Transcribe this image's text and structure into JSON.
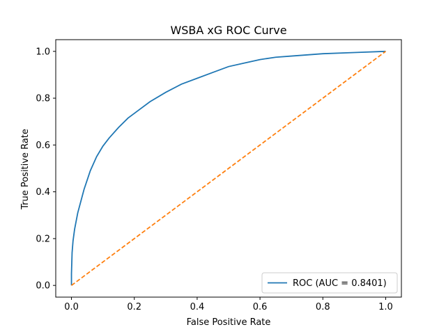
{
  "chart_data": {
    "type": "line",
    "title": "WSBA xG ROC Curve",
    "xlabel": "False Positive Rate",
    "ylabel": "True Positive Rate",
    "xlim": [
      -0.05,
      1.05
    ],
    "ylim": [
      -0.05,
      1.05
    ],
    "x_ticks": [
      "0.0",
      "0.2",
      "0.4",
      "0.6",
      "0.8",
      "1.0"
    ],
    "y_ticks": [
      "0.0",
      "0.2",
      "0.4",
      "0.6",
      "0.8",
      "1.0"
    ],
    "grid": false,
    "legend_position": "lower-right",
    "series": [
      {
        "name": "ROC (AUC = 0.8401)",
        "color": "#1f77b4",
        "style": "solid",
        "x": [
          0,
          0.0,
          0.002,
          0.005,
          0.01,
          0.02,
          0.03,
          0.04,
          0.05,
          0.06,
          0.08,
          0.1,
          0.12,
          0.15,
          0.18,
          0.2,
          0.25,
          0.3,
          0.35,
          0.4,
          0.45,
          0.5,
          0.55,
          0.6,
          0.65,
          0.7,
          0.8,
          0.9,
          1.0
        ],
        "y": [
          0,
          0.05,
          0.14,
          0.19,
          0.24,
          0.31,
          0.36,
          0.41,
          0.45,
          0.49,
          0.55,
          0.595,
          0.63,
          0.675,
          0.715,
          0.735,
          0.785,
          0.825,
          0.86,
          0.885,
          0.91,
          0.935,
          0.95,
          0.965,
          0.975,
          0.98,
          0.99,
          0.995,
          1.0
        ]
      },
      {
        "name": "",
        "color": "#ff7f0e",
        "style": "dashed",
        "x": [
          0,
          1
        ],
        "y": [
          0,
          1
        ]
      }
    ],
    "legend": [
      {
        "label": "ROC (AUC = 0.8401)",
        "color": "#1f77b4"
      }
    ]
  }
}
